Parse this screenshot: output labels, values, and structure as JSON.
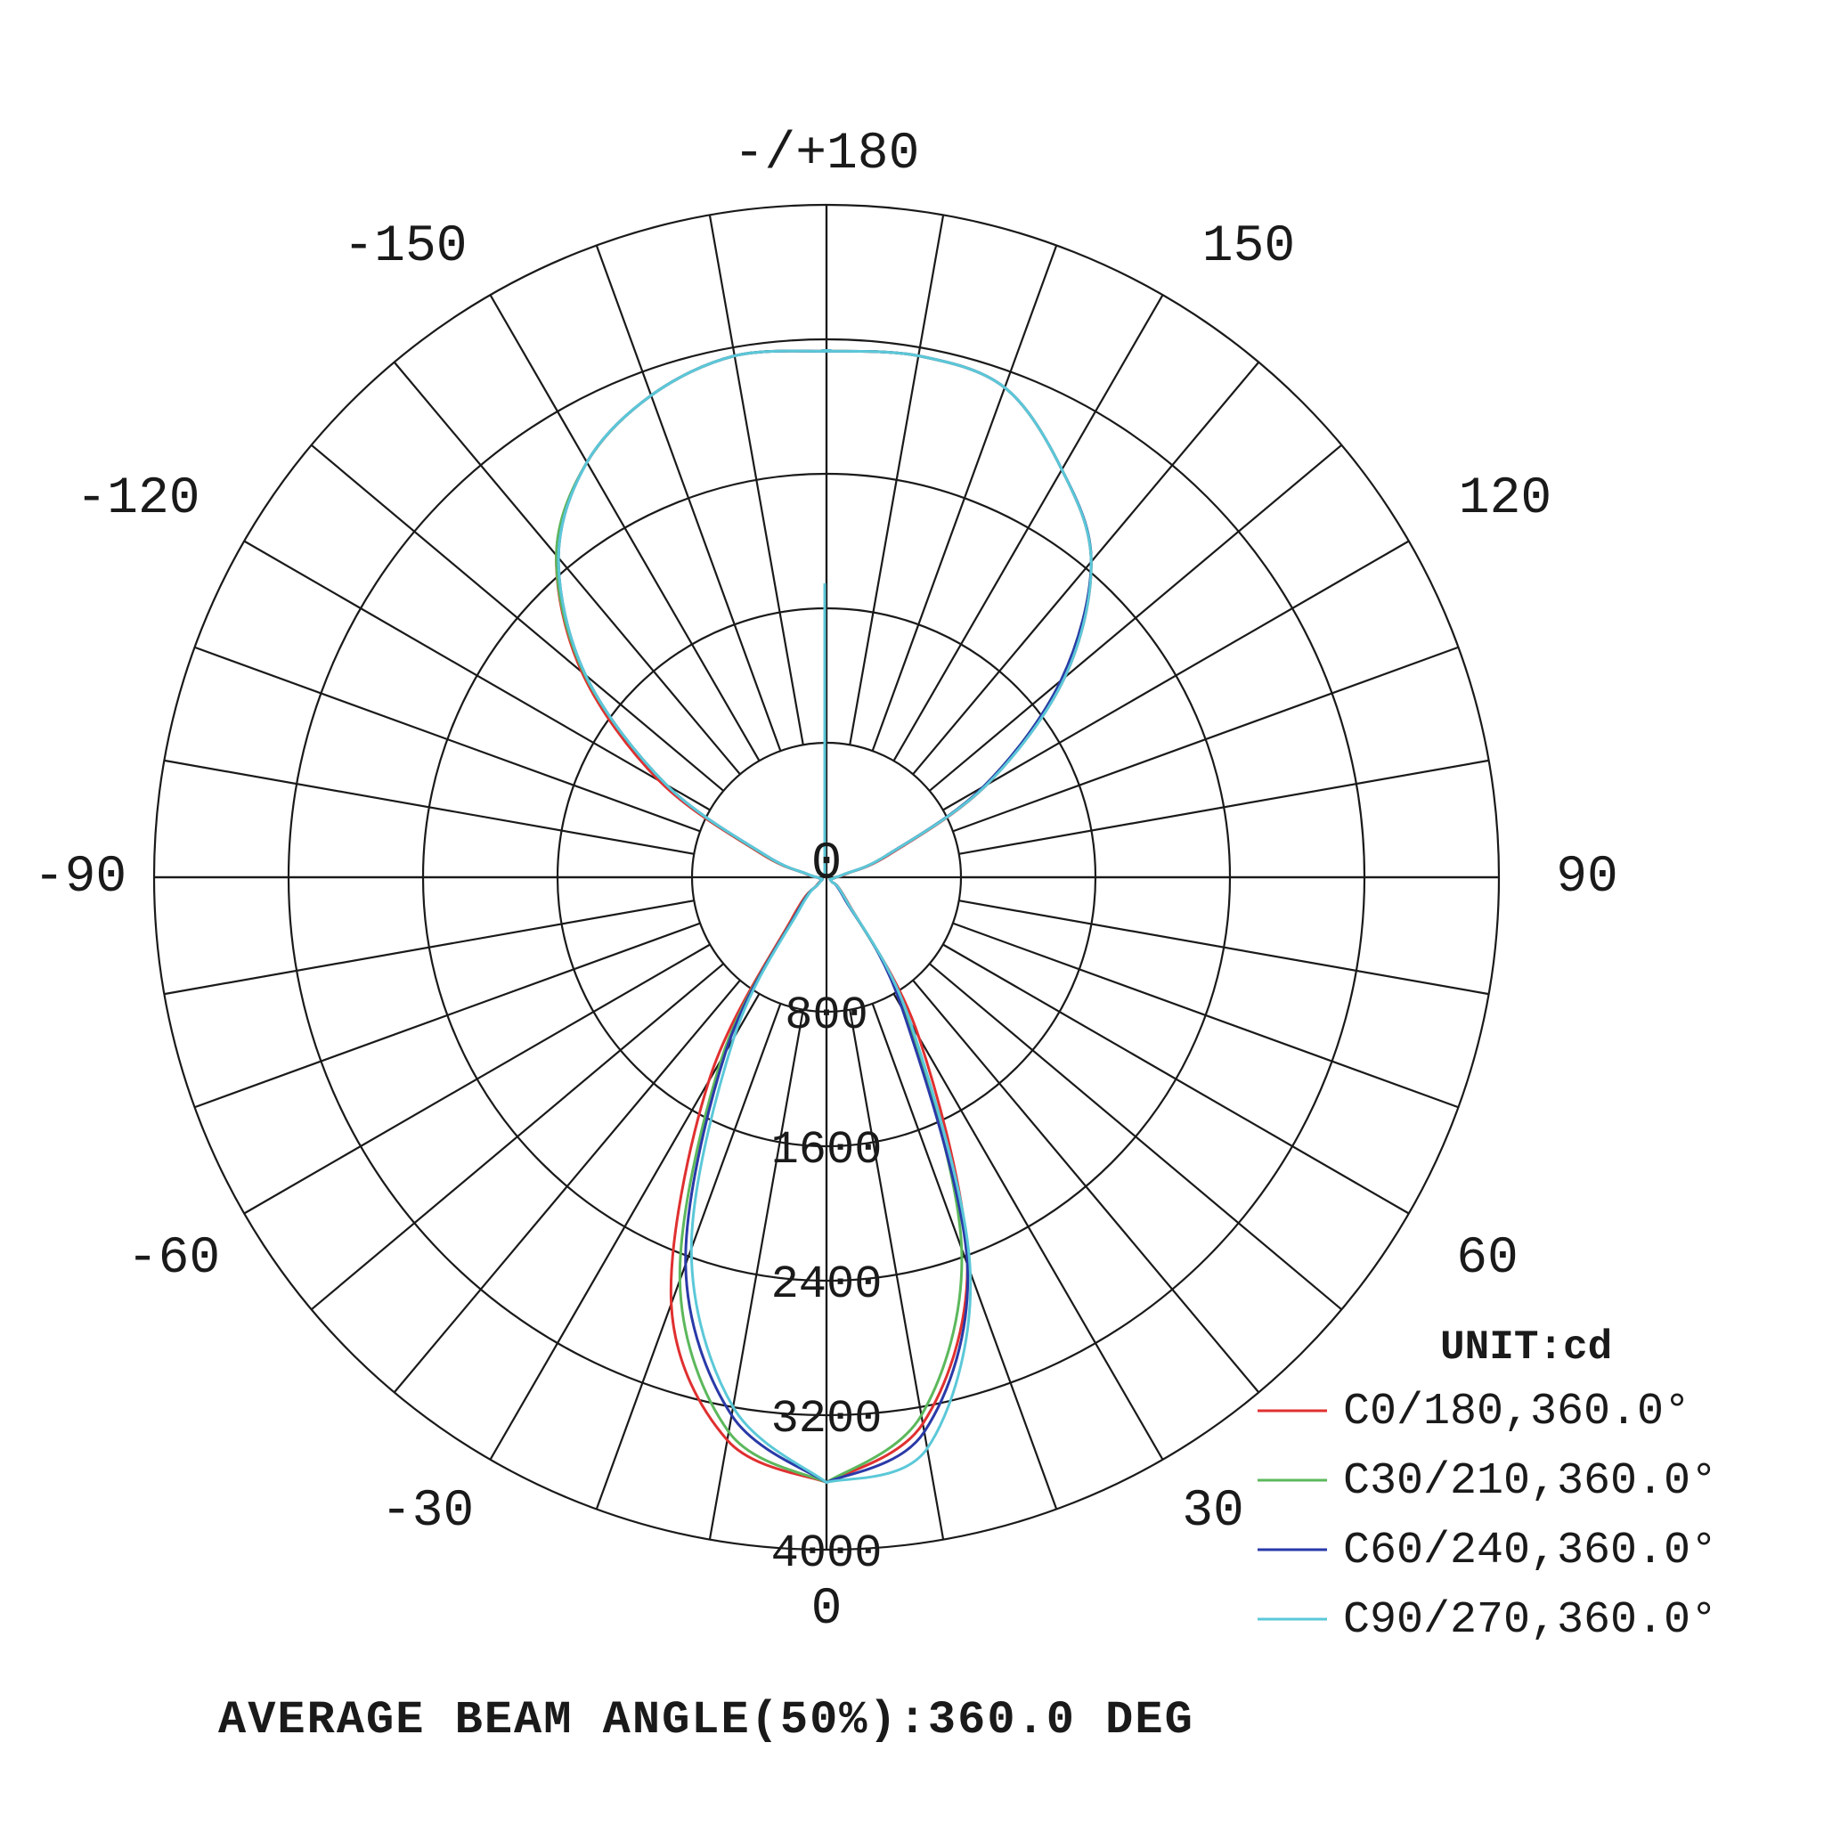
{
  "chart_data": {
    "type": "polar",
    "unit_label": "UNIT:cd",
    "footer": "AVERAGE BEAM ANGLE(50%):360.0 DEG",
    "center_label": "0",
    "bottom_label": "0",
    "r_max": 4000,
    "ring_values": [
      800,
      1600,
      2400,
      3200,
      4000
    ],
    "ring_labels": [
      "800",
      "1600",
      "2400",
      "3200",
      "4000"
    ],
    "angle_labels": [
      {
        "angle": 180,
        "text": "-/+180"
      },
      {
        "angle": -150,
        "text": "-150"
      },
      {
        "angle": 150,
        "text": "150"
      },
      {
        "angle": -120,
        "text": "-120"
      },
      {
        "angle": 120,
        "text": "120"
      },
      {
        "angle": -90,
        "text": "-90"
      },
      {
        "angle": 90,
        "text": "90"
      },
      {
        "angle": -60,
        "text": "-60"
      },
      {
        "angle": 60,
        "text": "60"
      },
      {
        "angle": -30,
        "text": "-30"
      },
      {
        "angle": 30,
        "text": "30"
      }
    ],
    "spoke_step_deg": 10,
    "gamma": [
      0,
      10,
      20,
      30,
      40,
      50,
      60,
      70,
      80,
      90,
      100,
      110,
      120,
      130,
      140,
      150,
      160,
      170,
      180
    ],
    "series": [
      {
        "name": "C0/180,360.0°",
        "color": "#e03030",
        "values_pos": [
          3600,
          3300,
          2450,
          1100,
          200,
          40,
          25,
          30,
          40,
          60,
          120,
          400,
          1100,
          1850,
          2450,
          2800,
          3100,
          3150,
          3130
        ],
        "values_neg": [
          3600,
          3400,
          2700,
          1400,
          320,
          80,
          30,
          30,
          40,
          60,
          130,
          420,
          1150,
          1900,
          2500,
          2850,
          3050,
          3150,
          3130
        ]
      },
      {
        "name": "C30/210,360.0°",
        "color": "#5cb85c",
        "values_pos": [
          3600,
          3250,
          2350,
          950,
          180,
          40,
          25,
          30,
          40,
          55,
          110,
          380,
          1080,
          1820,
          2450,
          2800,
          3100,
          3150,
          3130
        ],
        "values_neg": [
          3600,
          3350,
          2550,
          1250,
          280,
          70,
          30,
          30,
          40,
          55,
          120,
          400,
          1100,
          1880,
          2500,
          2850,
          3050,
          3150,
          3130
        ]
      },
      {
        "name": "C60/240,360.0°",
        "color": "#2a3aa8",
        "values_pos": [
          3600,
          3350,
          2450,
          900,
          170,
          40,
          25,
          30,
          40,
          55,
          110,
          380,
          1080,
          1820,
          2450,
          2800,
          3100,
          3150,
          3130
        ],
        "values_neg": [
          3600,
          3250,
          2450,
          1200,
          270,
          65,
          30,
          30,
          40,
          55,
          120,
          390,
          1100,
          1870,
          2480,
          2850,
          3050,
          3150,
          3130
        ]
      },
      {
        "name": "C90/270,360.0°",
        "color": "#5bc8d8",
        "values_pos": [
          3600,
          3450,
          2500,
          1000,
          190,
          40,
          25,
          30,
          40,
          55,
          110,
          380,
          1100,
          1850,
          2450,
          2800,
          3100,
          3150,
          3130
        ],
        "values_neg": [
          3600,
          3200,
          2350,
          1100,
          250,
          60,
          30,
          30,
          40,
          55,
          120,
          390,
          1100,
          1870,
          2480,
          2850,
          3050,
          3150,
          3130
        ]
      }
    ]
  }
}
